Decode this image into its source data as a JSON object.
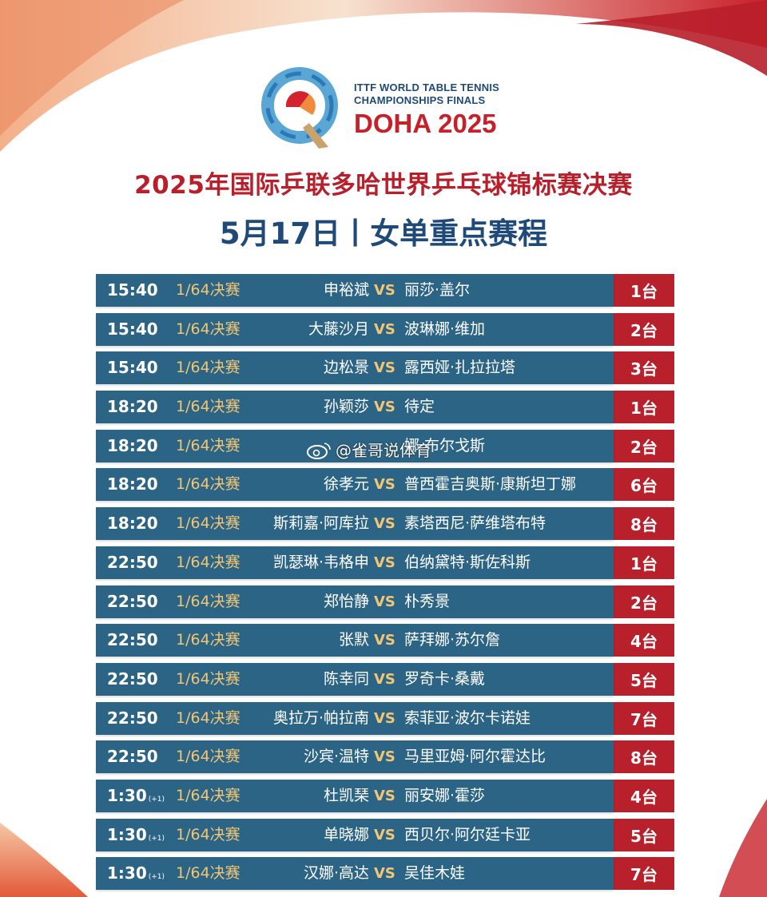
{
  "logo": {
    "line1": "ITTF WORLD TABLE TENNIS",
    "line2": "CHAMPIONSHIPS FINALS",
    "line3": "DOHA 2025"
  },
  "title": "2025年国际乒联多哈世界乒乓球锦标赛决赛",
  "subtitle": "5月17日丨女单重点赛程",
  "watermark": "@雀哥说体育",
  "colors": {
    "row_bg": "#2c6486",
    "venue_bg": "#b8202b",
    "accent_gold": "#f2c674",
    "title_red": "#b81f2a",
    "subtitle_blue": "#1f4a78"
  },
  "matches": [
    {
      "time": "15:40",
      "time_note": "",
      "round": "1/64决赛",
      "player1": "申裕斌",
      "vs": "VS",
      "player2": "丽莎·盖尔",
      "venue": "1台"
    },
    {
      "time": "15:40",
      "time_note": "",
      "round": "1/64决赛",
      "player1": "大藤沙月",
      "vs": "VS",
      "player2": "波琳娜·维加",
      "venue": "2台"
    },
    {
      "time": "15:40",
      "time_note": "",
      "round": "1/64决赛",
      "player1": "边松景",
      "vs": "VS",
      "player2": "露西娅·扎拉拉塔",
      "venue": "3台"
    },
    {
      "time": "18:20",
      "time_note": "",
      "round": "1/64决赛",
      "player1": "孙颖莎",
      "vs": "VS",
      "player2": "待定",
      "venue": "1台"
    },
    {
      "time": "18:20",
      "time_note": "",
      "round": "1/64决赛",
      "player1": "",
      "vs": "",
      "player2": "娜·布尔戈斯",
      "venue": "2台"
    },
    {
      "time": "18:20",
      "time_note": "",
      "round": "1/64决赛",
      "player1": "徐孝元",
      "vs": "VS",
      "player2": "普西霍吉奥斯·康斯坦丁娜",
      "venue": "6台"
    },
    {
      "time": "18:20",
      "time_note": "",
      "round": "1/64决赛",
      "player1": "斯莉嘉·阿库拉",
      "vs": "VS",
      "player2": "素塔西尼·萨维塔布特",
      "venue": "8台"
    },
    {
      "time": "22:50",
      "time_note": "",
      "round": "1/64决赛",
      "player1": "凯瑟琳·韦格申",
      "vs": "VS",
      "player2": "伯纳黛特·斯佐科斯",
      "venue": "1台"
    },
    {
      "time": "22:50",
      "time_note": "",
      "round": "1/64决赛",
      "player1": "郑怡静",
      "vs": "VS",
      "player2": "朴秀景",
      "venue": "2台"
    },
    {
      "time": "22:50",
      "time_note": "",
      "round": "1/64决赛",
      "player1": "张默",
      "vs": "VS",
      "player2": "萨拜娜·苏尔詹",
      "venue": "4台"
    },
    {
      "time": "22:50",
      "time_note": "",
      "round": "1/64决赛",
      "player1": "陈幸同",
      "vs": "VS",
      "player2": "罗奇卡·桑戴",
      "venue": "5台"
    },
    {
      "time": "22:50",
      "time_note": "",
      "round": "1/64决赛",
      "player1": "奥拉万·帕拉南",
      "vs": "VS",
      "player2": "索菲亚·波尔卡诺娃",
      "venue": "7台"
    },
    {
      "time": "22:50",
      "time_note": "",
      "round": "1/64决赛",
      "player1": "沙宾·温特",
      "vs": "VS",
      "player2": "马里亚姆·阿尔霍达比",
      "venue": "8台"
    },
    {
      "time": "1:30",
      "time_note": "(+1)",
      "round": "1/64决赛",
      "player1": "杜凯琹",
      "vs": "VS",
      "player2": "丽安娜·霍莎",
      "venue": "4台"
    },
    {
      "time": "1:30",
      "time_note": "(+1)",
      "round": "1/64决赛",
      "player1": "单晓娜",
      "vs": "VS",
      "player2": "西贝尔·阿尔廷卡亚",
      "venue": "5台"
    },
    {
      "time": "1:30",
      "time_note": "(+1)",
      "round": "1/64决赛",
      "player1": "汉娜·高达",
      "vs": "VS",
      "player2": "吴佳木娃",
      "venue": "7台"
    }
  ]
}
